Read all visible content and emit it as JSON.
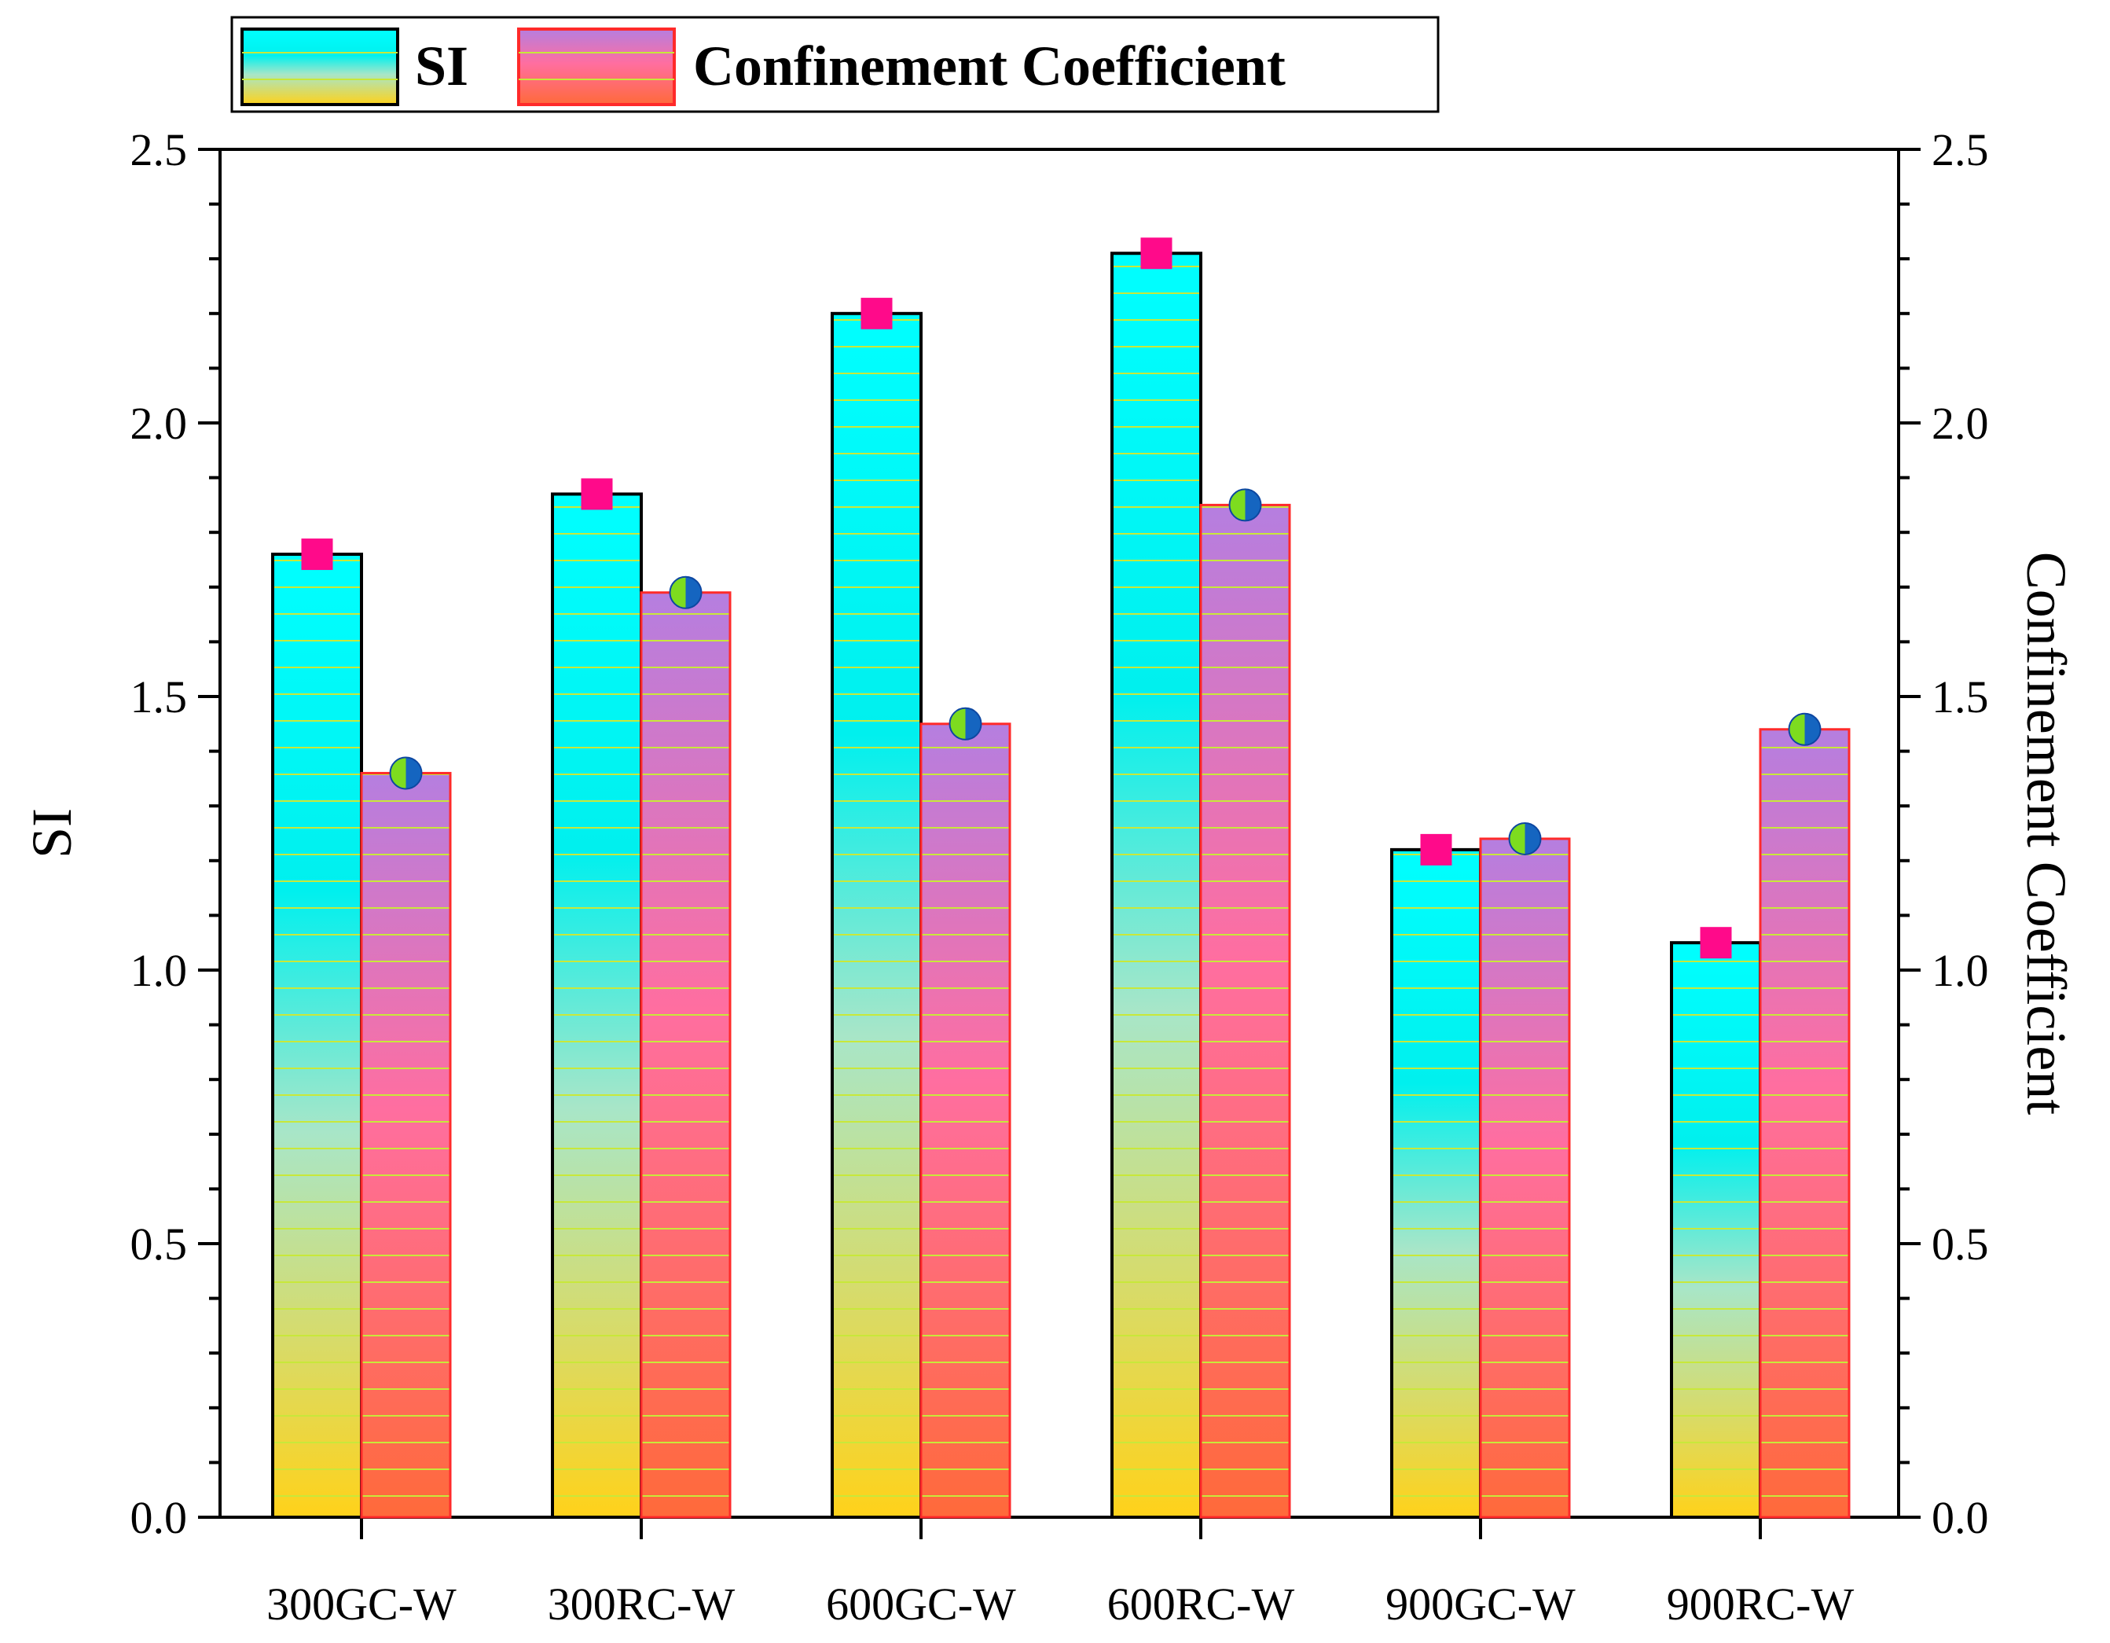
{
  "chart_data": {
    "type": "bar",
    "categories": [
      "300GC-W",
      "300RC-W",
      "600GC-W",
      "600RC-W",
      "900GC-W",
      "900RC-W"
    ],
    "series": [
      {
        "name": "SI",
        "values": [
          1.76,
          1.87,
          2.2,
          2.31,
          1.22,
          1.05
        ],
        "marker": "square",
        "marker_color": "#ff0a8a"
      },
      {
        "name": "Confinement Coefficient",
        "values": [
          1.36,
          1.69,
          1.45,
          1.85,
          1.24,
          1.44
        ],
        "marker": "half-circle",
        "marker_colors": [
          "#7ddc1f",
          "#1565c0"
        ]
      }
    ],
    "ylabel": "SI",
    "y2label": "Confinement Coefficient",
    "ylim": [
      0,
      2.5
    ],
    "y2lim": [
      0,
      2.5
    ],
    "yticks": [
      "0.0",
      "0.5",
      "1.0",
      "1.5",
      "2.0",
      "2.5"
    ],
    "legend_position": "top-left",
    "grid": false
  },
  "colors": {
    "si_top": "#00ffff",
    "si_mid": "#a8e6c8",
    "si_bottom": "#ffd21a",
    "cc_top": "#b57ee0",
    "cc_mid": "#ff6ea0",
    "cc_bottom": "#ff6a3a",
    "hatch": "#c8e83a",
    "cc_border": "#ff2a2a"
  }
}
